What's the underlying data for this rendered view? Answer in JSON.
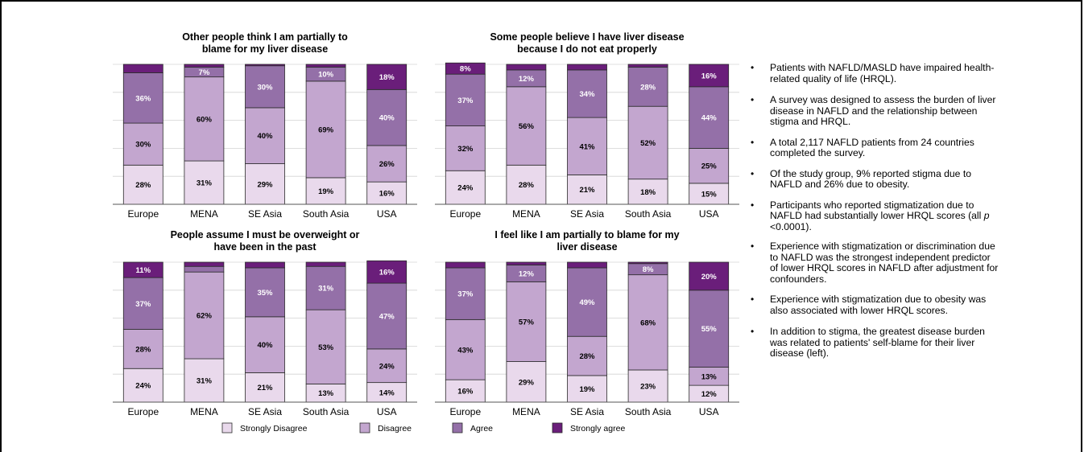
{
  "colors": {
    "strongly_disagree": "#E9D9EC",
    "disagree": "#C3A6CF",
    "agree": "#9470A8",
    "strongly_agree": "#6A1E7A"
  },
  "legend": [
    "Strongly Disagree",
    "Disagree",
    "Agree",
    "Strongly agree"
  ],
  "bullets": [
    {
      "parts": [
        {
          "t": "Patients with NAFLD/MASLD have impaired health-related quality of life (HRQL)."
        }
      ]
    },
    {
      "parts": [
        {
          "t": "A survey was designed to assess the burden of liver disease in NAFLD and the relationship between stigma and HRQL."
        }
      ]
    },
    {
      "parts": [
        {
          "t": "A total 2,117 NAFLD patients from 24 countries completed the survey."
        }
      ]
    },
    {
      "parts": [
        {
          "t": "Of the study group, 9% reported stigma due to NAFLD and 26% due to obesity."
        }
      ]
    },
    {
      "parts": [
        {
          "t": "Participants who reported stigmatization due to NAFLD had substantially lower HRQL scores (all "
        },
        {
          "t": "p",
          "i": true
        },
        {
          "t": " <0.0001)."
        }
      ]
    },
    {
      "parts": [
        {
          "t": "Experience with stigmatization or discrimination due to NAFLD was the strongest independent predictor of lower HRQL scores in NAFLD after adjustment for confounders."
        }
      ]
    },
    {
      "parts": [
        {
          "t": "Experience with stigmatization due to obesity was also associated with lower HRQL scores."
        }
      ]
    },
    {
      "parts": [
        {
          "t": "In addition to stigma, the greatest disease burden was related to patients' self-blame for their liver disease (left)."
        }
      ]
    }
  ],
  "chart_data": [
    {
      "type": "bar",
      "stacked": true,
      "title_lines": [
        "Other people think I am partially to",
        "blame for my liver disease"
      ],
      "categories": [
        "Europe",
        "MENA",
        "SE Asia",
        "South Asia",
        "USA"
      ],
      "ylim": [
        0,
        100
      ],
      "grid": true,
      "series": [
        {
          "name": "Strongly Disagree",
          "values": [
            28,
            31,
            29,
            19,
            16
          ],
          "labels": [
            "28%",
            "31%",
            "29%",
            "19%",
            "16%"
          ]
        },
        {
          "name": "Disagree",
          "values": [
            30,
            60,
            40,
            69,
            26
          ],
          "labels": [
            "30%",
            "60%",
            "40%",
            "69%",
            "26%"
          ]
        },
        {
          "name": "Agree",
          "values": [
            36,
            7,
            30,
            10,
            40
          ],
          "labels": [
            "36%",
            "7%",
            "30%",
            "10%",
            "40%"
          ]
        },
        {
          "name": "Strongly agree",
          "values": [
            6,
            2,
            1,
            2,
            18
          ],
          "labels": [
            "",
            "",
            "",
            "",
            "18%"
          ]
        }
      ]
    },
    {
      "type": "bar",
      "stacked": true,
      "title_lines": [
        "Some people believe I have liver disease",
        "because I do not eat properly"
      ],
      "categories": [
        "Europe",
        "MENA",
        "SE Asia",
        "South Asia",
        "USA"
      ],
      "ylim": [
        0,
        100
      ],
      "grid": true,
      "series": [
        {
          "name": "Strongly Disagree",
          "values": [
            24,
            28,
            21,
            18,
            15
          ],
          "labels": [
            "24%",
            "28%",
            "21%",
            "18%",
            "15%"
          ]
        },
        {
          "name": "Disagree",
          "values": [
            32,
            56,
            41,
            52,
            25
          ],
          "labels": [
            "32%",
            "56%",
            "41%",
            "52%",
            "25%"
          ]
        },
        {
          "name": "Agree",
          "values": [
            37,
            12,
            34,
            28,
            44
          ],
          "labels": [
            "37%",
            "12%",
            "34%",
            "28%",
            "44%"
          ]
        },
        {
          "name": "Strongly agree",
          "values": [
            8,
            4,
            4,
            2,
            16
          ],
          "labels": [
            "8%",
            "",
            "",
            "",
            "16%"
          ]
        }
      ]
    },
    {
      "type": "bar",
      "stacked": true,
      "title_lines": [
        "People assume I must be overweight or",
        "have been in the past"
      ],
      "categories": [
        "Europe",
        "MENA",
        "SE Asia",
        "South Asia",
        "USA"
      ],
      "ylim": [
        0,
        100
      ],
      "grid": true,
      "series": [
        {
          "name": "Strongly Disagree",
          "values": [
            24,
            31,
            21,
            13,
            14
          ],
          "labels": [
            "24%",
            "31%",
            "21%",
            "13%",
            "14%"
          ]
        },
        {
          "name": "Disagree",
          "values": [
            28,
            62,
            40,
            53,
            24
          ],
          "labels": [
            "28%",
            "62%",
            "40%",
            "53%",
            "24%"
          ]
        },
        {
          "name": "Agree",
          "values": [
            37,
            4,
            35,
            31,
            47
          ],
          "labels": [
            "37%",
            "",
            "35%",
            "31%",
            "47%"
          ]
        },
        {
          "name": "Strongly agree",
          "values": [
            11,
            3,
            4,
            3,
            16
          ],
          "labels": [
            "11%",
            "",
            "",
            "",
            "16%"
          ]
        }
      ]
    },
    {
      "type": "bar",
      "stacked": true,
      "title_lines": [
        "I feel like I am partially to blame for my",
        "liver disease"
      ],
      "categories": [
        "Europe",
        "MENA",
        "SE Asia",
        "South Asia",
        "USA"
      ],
      "ylim": [
        0,
        100
      ],
      "grid": true,
      "series": [
        {
          "name": "Strongly Disagree",
          "values": [
            16,
            29,
            19,
            23,
            12
          ],
          "labels": [
            "16%",
            "29%",
            "19%",
            "23%",
            "12%"
          ]
        },
        {
          "name": "Disagree",
          "values": [
            43,
            57,
            28,
            68,
            13
          ],
          "labels": [
            "43%",
            "57%",
            "28%",
            "68%",
            "13%"
          ]
        },
        {
          "name": "Agree",
          "values": [
            37,
            12,
            49,
            8,
            55
          ],
          "labels": [
            "37%",
            "12%",
            "49%",
            "8%",
            "55%"
          ]
        },
        {
          "name": "Strongly agree",
          "values": [
            4,
            2,
            4,
            1,
            20
          ],
          "labels": [
            "",
            "",
            "",
            "",
            "20%"
          ]
        }
      ]
    }
  ]
}
